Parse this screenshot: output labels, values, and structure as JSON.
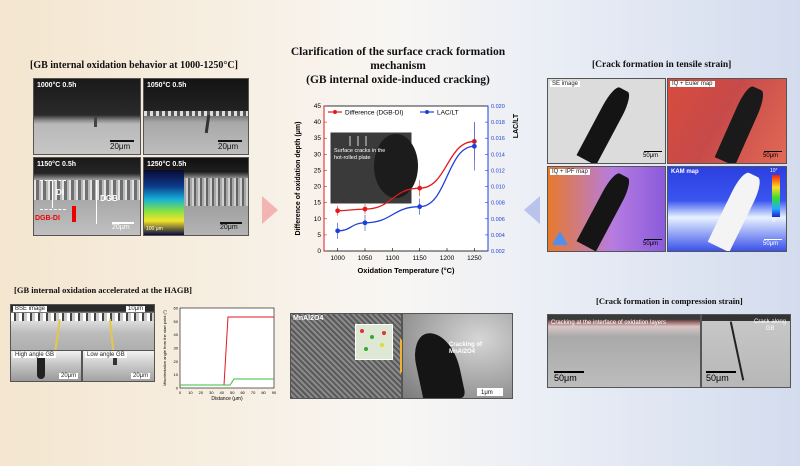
{
  "main": {
    "title_line1": "Clarification of the surface crack formation",
    "title_line2": "mechanism",
    "title_line3": "(GB internal oxide-induced cracking)"
  },
  "left_top": {
    "header": "[GB internal oxidation behavior at 1000-1250°C]",
    "panels": [
      {
        "label": "1000°C 0.5h",
        "scale": "20μm"
      },
      {
        "label": "1050°C 0.5h",
        "scale": "20μm"
      },
      {
        "label": "1150°C 0.5h",
        "scale": "20μm"
      },
      {
        "label": "1250°C 0.5h",
        "scale": "20μm"
      }
    ],
    "d_label": "DI",
    "dgb_label": "DGB",
    "diff_label": "DGB-DI",
    "inset_scale": "100 μm"
  },
  "left_bottom": {
    "header": "[GB internal oxidation accelerated at the HAGB]",
    "bse_label": "BSE image",
    "bse_scale": "10μm",
    "high_label": "High angle GB",
    "low_label": "Low angle GB",
    "scale_a": "20μm",
    "scale_b": "20μm",
    "profile": {
      "ylabel": "Misorientation angle from the start point (°)",
      "xlabel": "Distance (μm)",
      "xticks": [
        "0",
        "10",
        "20",
        "30",
        "40",
        "50",
        "60",
        "70",
        "80",
        "90"
      ],
      "yticks": [
        "0",
        "10",
        "20",
        "30",
        "40",
        "50",
        "60"
      ]
    }
  },
  "chart_data": {
    "type": "line",
    "x": [
      1000,
      1050,
      1150,
      1250
    ],
    "series": [
      {
        "name": "Difference (DGB-DI)",
        "axis": "left",
        "color": "#e31a1c",
        "values": [
          12.5,
          13,
          19.5,
          34
        ],
        "errors": [
          1.5,
          1.5,
          2.5,
          6
        ]
      },
      {
        "name": "LAC/LT",
        "axis": "right",
        "color": "#1f3fd6",
        "values": [
          0.0045,
          0.0055,
          0.0075,
          0.015
        ],
        "errors": [
          0.001,
          0.001,
          0.001,
          0.003
        ]
      }
    ],
    "xlabel": "Oxidation Temperature (°C)",
    "ylabel": "Difference of oxidation depth (μm)",
    "y2label": "LAC/LT",
    "xlim": [
      975,
      1275
    ],
    "ylim": [
      0,
      45
    ],
    "y2lim": [
      0.002,
      0.02
    ],
    "xticks": [
      1000,
      1050,
      1100,
      1150,
      1200,
      1250
    ],
    "yticks": [
      0,
      5,
      10,
      15,
      20,
      25,
      30,
      35,
      40,
      45
    ],
    "y2ticks": [
      "0.002",
      "0.004",
      "0.006",
      "0.008",
      "0.010",
      "0.012",
      "0.014",
      "0.016",
      "0.018",
      "0.020"
    ],
    "inset_caption": "Surface cracks in the hot-rolled plate"
  },
  "center_bottom": {
    "label_a": "MnAl2O4",
    "crack_label": "Cracking of MnAl2O4",
    "scale": "1μm"
  },
  "right_top": {
    "header": "[Crack formation in tensile strain]",
    "panels": [
      {
        "label": "SE image",
        "scale": "50μm"
      },
      {
        "label": "IQ + Euler map",
        "scale": "50μm"
      },
      {
        "label": "IQ + IPF map",
        "scale": "50μm"
      },
      {
        "label": "KAM map",
        "scale": "50μm"
      }
    ],
    "kam_max": "10°",
    "kam_min": "0°"
  },
  "right_bottom": {
    "header": "[Crack formation in compression strain]",
    "caption_a": "Cracking at the interface of oxidation layers",
    "caption_b": "Crack along GB",
    "scale_a": "50μm",
    "scale_b": "50μm"
  },
  "colors": {
    "red_series": "#e31a1c",
    "blue_series": "#1f3fd6",
    "arrow_pink": "#f3b4b4",
    "arrow_blue": "#b9c3ec"
  }
}
